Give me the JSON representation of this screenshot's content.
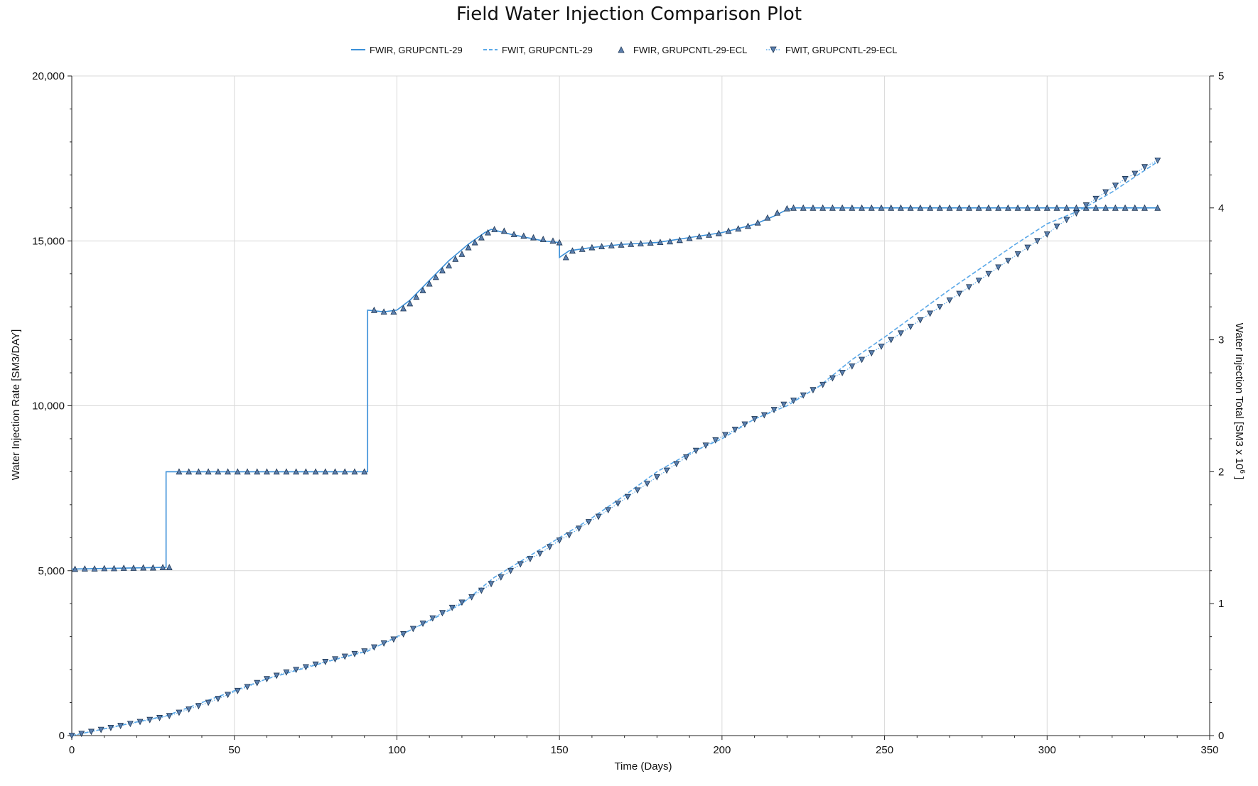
{
  "title": "Field Water Injection Comparison Plot",
  "colors": {
    "rate_line": "#3a8fd8",
    "total_line": "#5aa8e8",
    "marker_fill": "#5b7fae",
    "marker_stroke": "#1d3552",
    "grid": "#d9d9d9"
  },
  "chart_data": {
    "type": "line",
    "title": "Field Water Injection Comparison Plot",
    "xlabel": "Time (Days)",
    "ylabel_left": "Water Injection Rate [SM3/DAY]",
    "ylabel_right": "Water Injection Total [SM3 x 10",
    "ylabel_right_sup": "6",
    "ylabel_right_close": " ]",
    "xlim": [
      0,
      350
    ],
    "ylim_left": [
      0,
      20000
    ],
    "ylim_right": [
      0,
      5
    ],
    "xticks": [
      0,
      50,
      100,
      150,
      200,
      250,
      300,
      350
    ],
    "xtick_labels": [
      "0",
      "50",
      "100",
      "150",
      "200",
      "250",
      "300",
      "350"
    ],
    "yticks_left": [
      0,
      5000,
      10000,
      15000,
      20000
    ],
    "ytick_labels_left": [
      "0",
      "5,000",
      "10,000",
      "15,000",
      "20,000"
    ],
    "yticks_right": [
      0,
      1,
      2,
      3,
      4,
      5
    ],
    "ytick_labels_right": [
      "0",
      "1",
      "2",
      "3",
      "4",
      "5"
    ],
    "grid": true,
    "legend_position": "top-center",
    "series": [
      {
        "name": "FWIR, GRUPCNTL-29",
        "style": "solid-line",
        "axis": "left",
        "points": [
          [
            0,
            5050
          ],
          [
            29,
            5100
          ],
          [
            29,
            8000
          ],
          [
            91,
            8000
          ],
          [
            91,
            12900
          ],
          [
            96,
            12850
          ],
          [
            100,
            12900
          ],
          [
            104,
            13200
          ],
          [
            110,
            13800
          ],
          [
            116,
            14400
          ],
          [
            122,
            14900
          ],
          [
            127,
            15250
          ],
          [
            129,
            15350
          ],
          [
            135,
            15200
          ],
          [
            140,
            15100
          ],
          [
            145,
            15000
          ],
          [
            150,
            14950
          ],
          [
            150,
            14500
          ],
          [
            153,
            14700
          ],
          [
            160,
            14800
          ],
          [
            170,
            14900
          ],
          [
            180,
            14950
          ],
          [
            190,
            15100
          ],
          [
            200,
            15250
          ],
          [
            210,
            15500
          ],
          [
            216,
            15750
          ],
          [
            220,
            15950
          ],
          [
            222,
            16000
          ],
          [
            334,
            16000
          ]
        ]
      },
      {
        "name": "FWIT, GRUPCNTL-29",
        "style": "dashed-line",
        "axis": "right",
        "points": [
          [
            0,
            0
          ],
          [
            29,
            0.15
          ],
          [
            40,
            0.25
          ],
          [
            50,
            0.34
          ],
          [
            60,
            0.43
          ],
          [
            70,
            0.5
          ],
          [
            80,
            0.57
          ],
          [
            91,
            0.64
          ],
          [
            100,
            0.75
          ],
          [
            110,
            0.87
          ],
          [
            120,
            1.0
          ],
          [
            130,
            1.2
          ],
          [
            140,
            1.35
          ],
          [
            150,
            1.5
          ],
          [
            160,
            1.65
          ],
          [
            170,
            1.82
          ],
          [
            180,
            2.0
          ],
          [
            190,
            2.14
          ],
          [
            200,
            2.25
          ],
          [
            210,
            2.4
          ],
          [
            220,
            2.5
          ],
          [
            230,
            2.65
          ],
          [
            240,
            2.85
          ],
          [
            250,
            3.02
          ],
          [
            260,
            3.2
          ],
          [
            270,
            3.38
          ],
          [
            280,
            3.55
          ],
          [
            290,
            3.72
          ],
          [
            300,
            3.88
          ],
          [
            310,
            3.98
          ],
          [
            320,
            4.12
          ],
          [
            334,
            4.35
          ]
        ]
      },
      {
        "name": "FWIR, GRUPCNTL-29-ECL",
        "style": "up-triangle-markers",
        "axis": "left",
        "points": [
          [
            1,
            5050
          ],
          [
            4,
            5060
          ],
          [
            7,
            5060
          ],
          [
            10,
            5070
          ],
          [
            13,
            5070
          ],
          [
            16,
            5080
          ],
          [
            19,
            5080
          ],
          [
            22,
            5090
          ],
          [
            25,
            5090
          ],
          [
            28,
            5100
          ],
          [
            30,
            5100
          ],
          [
            33,
            8000
          ],
          [
            36,
            8000
          ],
          [
            39,
            8000
          ],
          [
            42,
            8000
          ],
          [
            45,
            8000
          ],
          [
            48,
            8000
          ],
          [
            51,
            8000
          ],
          [
            54,
            8000
          ],
          [
            57,
            8000
          ],
          [
            60,
            8000
          ],
          [
            63,
            8000
          ],
          [
            66,
            8000
          ],
          [
            69,
            8000
          ],
          [
            72,
            8000
          ],
          [
            75,
            8000
          ],
          [
            78,
            8000
          ],
          [
            81,
            8000
          ],
          [
            84,
            8000
          ],
          [
            87,
            8000
          ],
          [
            90,
            8000
          ],
          [
            93,
            12900
          ],
          [
            96,
            12850
          ],
          [
            99,
            12850
          ],
          [
            102,
            12950
          ],
          [
            104,
            13100
          ],
          [
            106,
            13300
          ],
          [
            108,
            13500
          ],
          [
            110,
            13700
          ],
          [
            112,
            13900
          ],
          [
            114,
            14100
          ],
          [
            116,
            14250
          ],
          [
            118,
            14450
          ],
          [
            120,
            14600
          ],
          [
            122,
            14800
          ],
          [
            124,
            14950
          ],
          [
            126,
            15100
          ],
          [
            128,
            15250
          ],
          [
            130,
            15350
          ],
          [
            133,
            15300
          ],
          [
            136,
            15200
          ],
          [
            139,
            15150
          ],
          [
            142,
            15100
          ],
          [
            145,
            15050
          ],
          [
            148,
            15000
          ],
          [
            150,
            14950
          ],
          [
            152,
            14500
          ],
          [
            154,
            14700
          ],
          [
            157,
            14750
          ],
          [
            160,
            14800
          ],
          [
            163,
            14830
          ],
          [
            166,
            14860
          ],
          [
            169,
            14880
          ],
          [
            172,
            14900
          ],
          [
            175,
            14920
          ],
          [
            178,
            14940
          ],
          [
            181,
            14960
          ],
          [
            184,
            14980
          ],
          [
            187,
            15020
          ],
          [
            190,
            15080
          ],
          [
            193,
            15130
          ],
          [
            196,
            15180
          ],
          [
            199,
            15230
          ],
          [
            202,
            15300
          ],
          [
            205,
            15370
          ],
          [
            208,
            15450
          ],
          [
            211,
            15550
          ],
          [
            214,
            15700
          ],
          [
            217,
            15850
          ],
          [
            220,
            15980
          ],
          [
            222,
            16000
          ],
          [
            225,
            16000
          ],
          [
            228,
            16000
          ],
          [
            231,
            16000
          ],
          [
            234,
            16000
          ],
          [
            237,
            16000
          ],
          [
            240,
            16000
          ],
          [
            243,
            16000
          ],
          [
            246,
            16000
          ],
          [
            249,
            16000
          ],
          [
            252,
            16000
          ],
          [
            255,
            16000
          ],
          [
            258,
            16000
          ],
          [
            261,
            16000
          ],
          [
            264,
            16000
          ],
          [
            267,
            16000
          ],
          [
            270,
            16000
          ],
          [
            273,
            16000
          ],
          [
            276,
            16000
          ],
          [
            279,
            16000
          ],
          [
            282,
            16000
          ],
          [
            285,
            16000
          ],
          [
            288,
            16000
          ],
          [
            291,
            16000
          ],
          [
            294,
            16000
          ],
          [
            297,
            16000
          ],
          [
            300,
            16000
          ],
          [
            303,
            16000
          ],
          [
            306,
            16000
          ],
          [
            309,
            16000
          ],
          [
            312,
            16000
          ],
          [
            315,
            16000
          ],
          [
            318,
            16000
          ],
          [
            321,
            16000
          ],
          [
            324,
            16000
          ],
          [
            327,
            16000
          ],
          [
            330,
            16000
          ],
          [
            334,
            16000
          ]
        ]
      },
      {
        "name": "FWIT, GRUPCNTL-29-ECL",
        "style": "down-triangle-markers-dotted",
        "axis": "right",
        "points": [
          [
            0,
            0
          ],
          [
            3,
            0.015
          ],
          [
            6,
            0.03
          ],
          [
            9,
            0.045
          ],
          [
            12,
            0.06
          ],
          [
            15,
            0.075
          ],
          [
            18,
            0.09
          ],
          [
            21,
            0.105
          ],
          [
            24,
            0.12
          ],
          [
            27,
            0.135
          ],
          [
            30,
            0.15
          ],
          [
            33,
            0.175
          ],
          [
            36,
            0.2
          ],
          [
            39,
            0.225
          ],
          [
            42,
            0.25
          ],
          [
            45,
            0.28
          ],
          [
            48,
            0.31
          ],
          [
            51,
            0.34
          ],
          [
            54,
            0.37
          ],
          [
            57,
            0.4
          ],
          [
            60,
            0.43
          ],
          [
            63,
            0.455
          ],
          [
            66,
            0.48
          ],
          [
            69,
            0.5
          ],
          [
            72,
            0.52
          ],
          [
            75,
            0.54
          ],
          [
            78,
            0.56
          ],
          [
            81,
            0.58
          ],
          [
            84,
            0.6
          ],
          [
            87,
            0.62
          ],
          [
            90,
            0.64
          ],
          [
            93,
            0.67
          ],
          [
            96,
            0.7
          ],
          [
            99,
            0.73
          ],
          [
            102,
            0.77
          ],
          [
            105,
            0.81
          ],
          [
            108,
            0.85
          ],
          [
            111,
            0.89
          ],
          [
            114,
            0.93
          ],
          [
            117,
            0.97
          ],
          [
            120,
            1.01
          ],
          [
            123,
            1.05
          ],
          [
            126,
            1.1
          ],
          [
            129,
            1.15
          ],
          [
            132,
            1.2
          ],
          [
            135,
            1.25
          ],
          [
            138,
            1.3
          ],
          [
            141,
            1.34
          ],
          [
            144,
            1.38
          ],
          [
            147,
            1.43
          ],
          [
            150,
            1.48
          ],
          [
            153,
            1.52
          ],
          [
            156,
            1.57
          ],
          [
            159,
            1.62
          ],
          [
            162,
            1.66
          ],
          [
            165,
            1.71
          ],
          [
            168,
            1.76
          ],
          [
            171,
            1.81
          ],
          [
            174,
            1.86
          ],
          [
            177,
            1.91
          ],
          [
            180,
            1.96
          ],
          [
            183,
            2.01
          ],
          [
            186,
            2.06
          ],
          [
            189,
            2.11
          ],
          [
            192,
            2.16
          ],
          [
            195,
            2.2
          ],
          [
            198,
            2.24
          ],
          [
            201,
            2.28
          ],
          [
            204,
            2.32
          ],
          [
            207,
            2.36
          ],
          [
            210,
            2.4
          ],
          [
            213,
            2.43
          ],
          [
            216,
            2.47
          ],
          [
            219,
            2.51
          ],
          [
            222,
            2.54
          ],
          [
            225,
            2.58
          ],
          [
            228,
            2.62
          ],
          [
            231,
            2.66
          ],
          [
            234,
            2.71
          ],
          [
            237,
            2.75
          ],
          [
            240,
            2.8
          ],
          [
            243,
            2.85
          ],
          [
            246,
            2.9
          ],
          [
            249,
            2.95
          ],
          [
            252,
            3.0
          ],
          [
            255,
            3.05
          ],
          [
            258,
            3.1
          ],
          [
            261,
            3.15
          ],
          [
            264,
            3.2
          ],
          [
            267,
            3.25
          ],
          [
            270,
            3.3
          ],
          [
            273,
            3.35
          ],
          [
            276,
            3.4
          ],
          [
            279,
            3.45
          ],
          [
            282,
            3.5
          ],
          [
            285,
            3.55
          ],
          [
            288,
            3.6
          ],
          [
            291,
            3.65
          ],
          [
            294,
            3.7
          ],
          [
            297,
            3.75
          ],
          [
            300,
            3.8
          ],
          [
            303,
            3.86
          ],
          [
            306,
            3.91
          ],
          [
            309,
            3.96
          ],
          [
            312,
            4.02
          ],
          [
            315,
            4.07
          ],
          [
            318,
            4.12
          ],
          [
            321,
            4.17
          ],
          [
            324,
            4.22
          ],
          [
            327,
            4.26
          ],
          [
            330,
            4.31
          ],
          [
            334,
            4.36
          ]
        ]
      }
    ]
  }
}
